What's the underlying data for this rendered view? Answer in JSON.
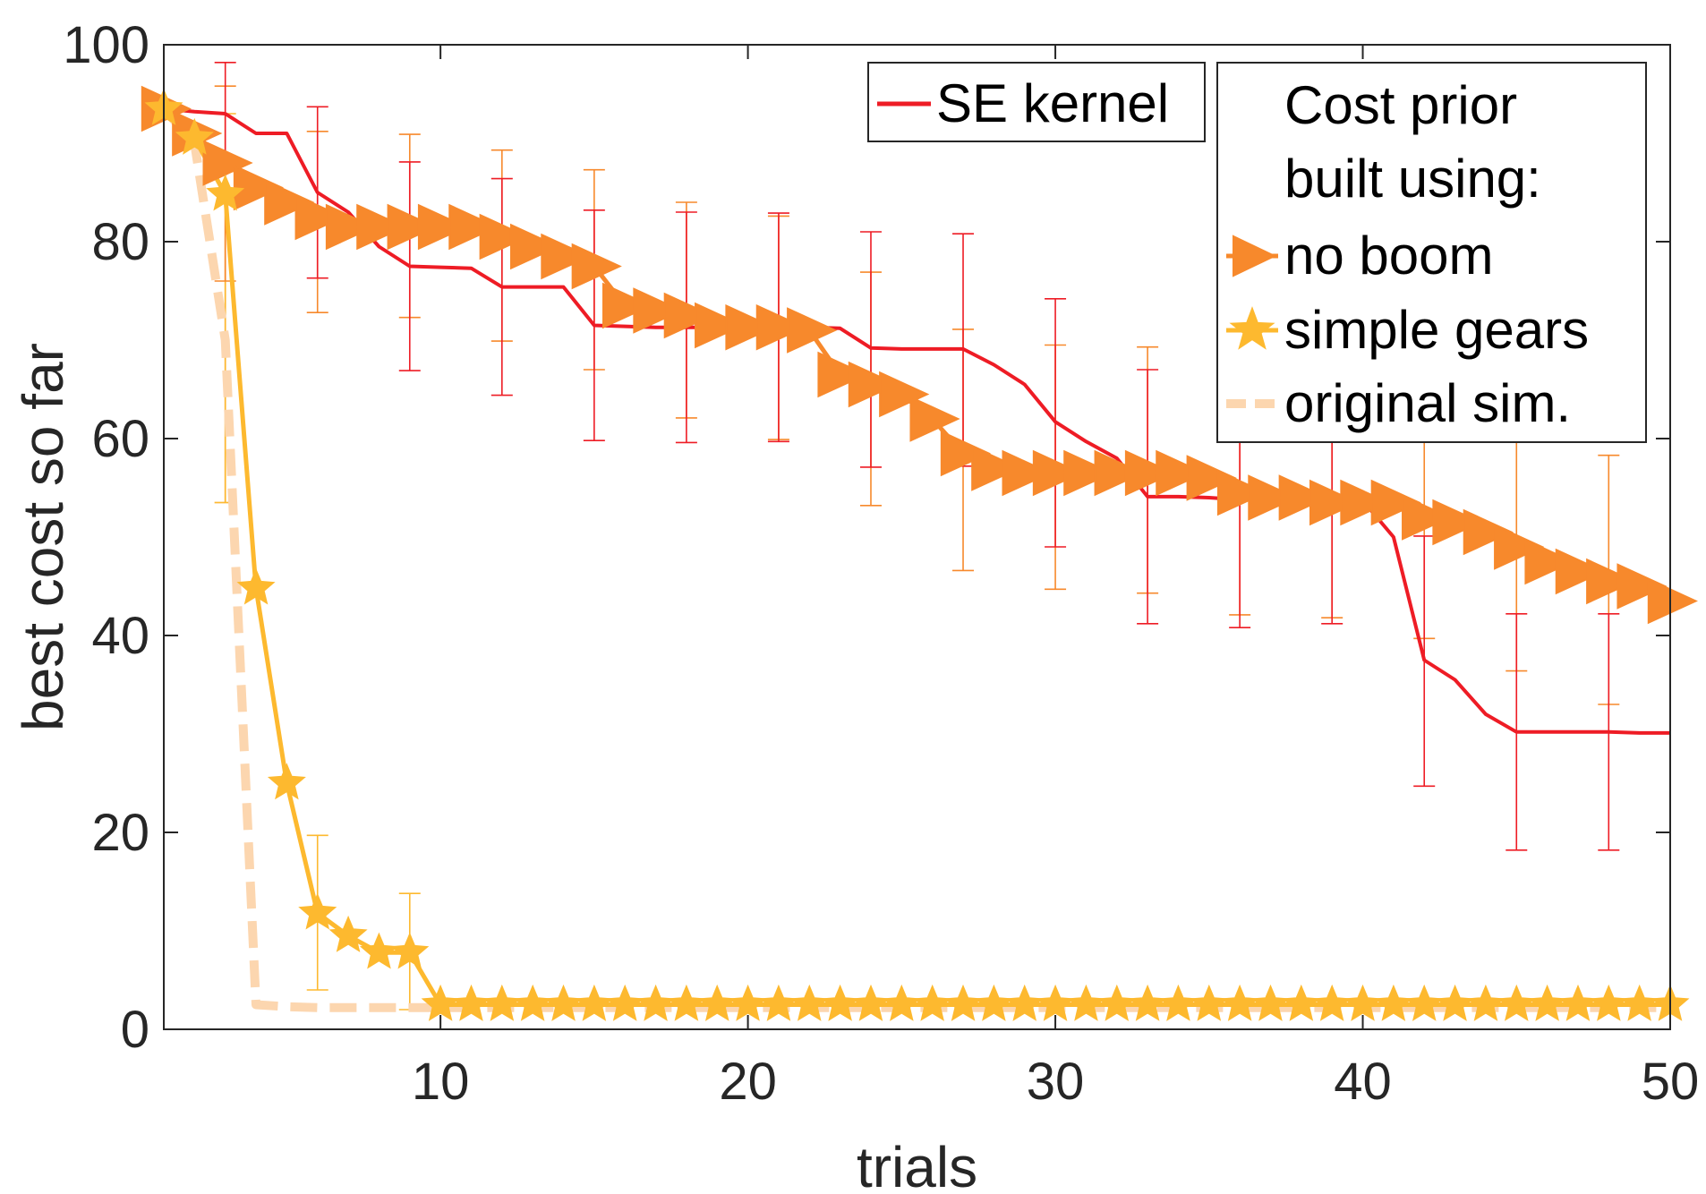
{
  "chart_data": {
    "type": "line",
    "xlabel": "trials",
    "ylabel": "best cost so far",
    "xlim": [
      1,
      50
    ],
    "ylim": [
      0,
      100
    ],
    "xticks": [
      10,
      20,
      30,
      40,
      50
    ],
    "yticks": [
      0,
      20,
      40,
      60,
      80,
      100
    ],
    "grid": false,
    "legend_placement": "top-right",
    "legend_title": "Cost prior built using:",
    "series": [
      {
        "name": "SE kernel",
        "color": "#EE1C25",
        "style": "solid",
        "x": [
          1,
          2,
          3,
          4,
          5,
          6,
          7,
          8,
          9,
          10,
          11,
          12,
          13,
          14,
          15,
          16,
          17,
          18,
          19,
          20,
          21,
          22,
          23,
          24,
          25,
          26,
          27,
          28,
          29,
          30,
          31,
          32,
          33,
          34,
          35,
          36,
          37,
          38,
          39,
          40,
          41,
          42,
          43,
          44,
          45,
          46,
          47,
          48,
          49,
          50
        ],
        "y": [
          93.5,
          93.2,
          93.0,
          91.0,
          91.0,
          85.0,
          83.0,
          79.5,
          77.5,
          77.4,
          77.3,
          75.4,
          75.4,
          75.4,
          71.5,
          71.4,
          71.3,
          71.3,
          71.3,
          71.3,
          71.3,
          71.3,
          71.2,
          69.2,
          69.1,
          69.1,
          69.1,
          67.5,
          65.5,
          61.7,
          59.7,
          58.0,
          54.1,
          54.1,
          54.0,
          53.8,
          53.8,
          53.8,
          53.8,
          53.7,
          50.0,
          37.5,
          35.5,
          32.0,
          30.2,
          30.2,
          30.2,
          30.2,
          30.1,
          30.1
        ],
        "error_bars": [
          {
            "x": 3,
            "lower": 87.8,
            "upper": 98.2
          },
          {
            "x": 6,
            "lower": 76.3,
            "upper": 93.7
          },
          {
            "x": 9,
            "lower": 66.9,
            "upper": 88.1
          },
          {
            "x": 12,
            "lower": 64.4,
            "upper": 86.4
          },
          {
            "x": 15,
            "lower": 59.8,
            "upper": 83.2
          },
          {
            "x": 18,
            "lower": 59.6,
            "upper": 83.0
          },
          {
            "x": 21,
            "lower": 59.7,
            "upper": 82.9
          },
          {
            "x": 24,
            "lower": 57.1,
            "upper": 81.0
          },
          {
            "x": 27,
            "lower": 57.2,
            "upper": 80.8
          },
          {
            "x": 30,
            "lower": 49.0,
            "upper": 74.2
          },
          {
            "x": 33,
            "lower": 41.2,
            "upper": 67.0
          },
          {
            "x": 36,
            "lower": 40.8,
            "upper": 66.8
          },
          {
            "x": 39,
            "lower": 41.2,
            "upper": 66.3
          },
          {
            "x": 42,
            "lower": 24.7,
            "upper": 50.1
          },
          {
            "x": 45,
            "lower": 18.2,
            "upper": 42.2
          },
          {
            "x": 48,
            "lower": 18.2,
            "upper": 42.2
          }
        ]
      },
      {
        "name": "no boom",
        "color": "#F7892C",
        "style": "solid",
        "marker": "triangle-right",
        "x": [
          1,
          2,
          3,
          4,
          5,
          6,
          7,
          8,
          9,
          10,
          11,
          12,
          13,
          14,
          15,
          16,
          17,
          18,
          19,
          20,
          21,
          22,
          23,
          24,
          25,
          26,
          27,
          28,
          29,
          30,
          31,
          32,
          33,
          34,
          35,
          36,
          37,
          38,
          39,
          40,
          41,
          42,
          43,
          44,
          45,
          46,
          47,
          48,
          49,
          50
        ],
        "y": [
          93.5,
          91.0,
          88.0,
          85.5,
          84.0,
          82.5,
          81.5,
          81.5,
          81.5,
          81.5,
          81.5,
          80.5,
          79.5,
          78.5,
          77.5,
          73.5,
          73.0,
          72.5,
          71.5,
          71.3,
          71.3,
          71.0,
          66.5,
          65.5,
          64.5,
          62.0,
          58.5,
          57.0,
          56.5,
          56.5,
          56.5,
          56.5,
          56.5,
          56.5,
          56.0,
          54.5,
          54.0,
          54.0,
          53.5,
          53.5,
          53.5,
          52.0,
          51.5,
          50.5,
          49.0,
          47.5,
          46.5,
          45.5,
          45.0,
          43.5
        ],
        "error_bars": [
          {
            "x": 3,
            "lower": 76.0,
            "upper": 95.8
          },
          {
            "x": 6,
            "lower": 72.8,
            "upper": 91.2
          },
          {
            "x": 9,
            "lower": 72.3,
            "upper": 90.9
          },
          {
            "x": 12,
            "lower": 69.9,
            "upper": 89.3
          },
          {
            "x": 15,
            "lower": 67.0,
            "upper": 87.3
          },
          {
            "x": 18,
            "lower": 62.1,
            "upper": 84.0
          },
          {
            "x": 21,
            "lower": 59.9,
            "upper": 82.6
          },
          {
            "x": 24,
            "lower": 53.2,
            "upper": 76.9
          },
          {
            "x": 27,
            "lower": 46.6,
            "upper": 71.1
          },
          {
            "x": 30,
            "lower": 44.7,
            "upper": 69.5
          },
          {
            "x": 33,
            "lower": 44.3,
            "upper": 69.3
          },
          {
            "x": 36,
            "lower": 42.1,
            "upper": 67.5
          },
          {
            "x": 39,
            "lower": 41.8,
            "upper": 66.2
          },
          {
            "x": 42,
            "lower": 39.7,
            "upper": 64.3
          },
          {
            "x": 45,
            "lower": 36.4,
            "upper": 62.7
          },
          {
            "x": 48,
            "lower": 33.0,
            "upper": 58.3
          }
        ]
      },
      {
        "name": "simple gears",
        "color": "#FDB92F",
        "style": "solid",
        "marker": "star",
        "x": [
          1,
          2,
          3,
          4,
          5,
          6,
          7,
          8,
          9,
          10,
          11,
          12,
          13,
          14,
          15,
          16,
          17,
          18,
          19,
          20,
          21,
          22,
          23,
          24,
          25,
          26,
          27,
          28,
          29,
          30,
          31,
          32,
          33,
          34,
          35,
          36,
          37,
          38,
          39,
          40,
          41,
          42,
          43,
          44,
          45,
          46,
          47,
          48,
          49,
          50
        ],
        "y": [
          93.5,
          90.5,
          84.8,
          44.8,
          25.0,
          11.8,
          9.5,
          7.8,
          7.8,
          2.5,
          2.5,
          2.5,
          2.5,
          2.5,
          2.5,
          2.5,
          2.5,
          2.5,
          2.5,
          2.5,
          2.5,
          2.5,
          2.5,
          2.5,
          2.5,
          2.5,
          2.5,
          2.5,
          2.5,
          2.5,
          2.5,
          2.5,
          2.5,
          2.5,
          2.5,
          2.5,
          2.5,
          2.5,
          2.5,
          2.5,
          2.5,
          2.5,
          2.5,
          2.5,
          2.5,
          2.5,
          2.5,
          2.5,
          2.5,
          2.5
        ],
        "error_bars": [
          {
            "x": 3,
            "lower": 53.5,
            "upper": 93.0
          },
          {
            "x": 6,
            "lower": 4.0,
            "upper": 19.7
          },
          {
            "x": 9,
            "lower": 2.0,
            "upper": 13.8
          }
        ]
      },
      {
        "name": "original sim.",
        "color": "#FCD6AF",
        "style": "dashed",
        "x": [
          1,
          2,
          3,
          4,
          5,
          6,
          7,
          8,
          9,
          10,
          11,
          12,
          13,
          14,
          15,
          16,
          17,
          18,
          19,
          20,
          21,
          22,
          23,
          24,
          25,
          26,
          27,
          28,
          29,
          30,
          31,
          32,
          33,
          34,
          35,
          36,
          37,
          38,
          39,
          40,
          41,
          42,
          43,
          44,
          45,
          46,
          47,
          48,
          49,
          50
        ],
        "y": [
          93.5,
          90.0,
          70.0,
          2.5,
          2.3,
          2.2,
          2.2,
          2.2,
          2.2,
          2.2,
          2.2,
          2.2,
          2.2,
          2.2,
          2.2,
          2.2,
          2.2,
          2.2,
          2.2,
          2.2,
          2.2,
          2.2,
          2.2,
          2.2,
          2.2,
          2.2,
          2.2,
          2.2,
          2.2,
          2.2,
          2.2,
          2.2,
          2.2,
          2.2,
          2.2,
          2.2,
          2.2,
          2.2,
          2.2,
          2.2,
          2.2,
          2.2,
          2.2,
          2.2,
          2.2,
          2.2,
          2.2,
          2.2,
          2.2,
          2.2
        ],
        "error_bars": [
          {
            "x": 3,
            "lower": 53.5,
            "upper": 87.5
          }
        ]
      }
    ]
  },
  "legend": {
    "se_label": "SE kernel",
    "title_line1": "Cost prior",
    "title_line2": "built using:"
  }
}
